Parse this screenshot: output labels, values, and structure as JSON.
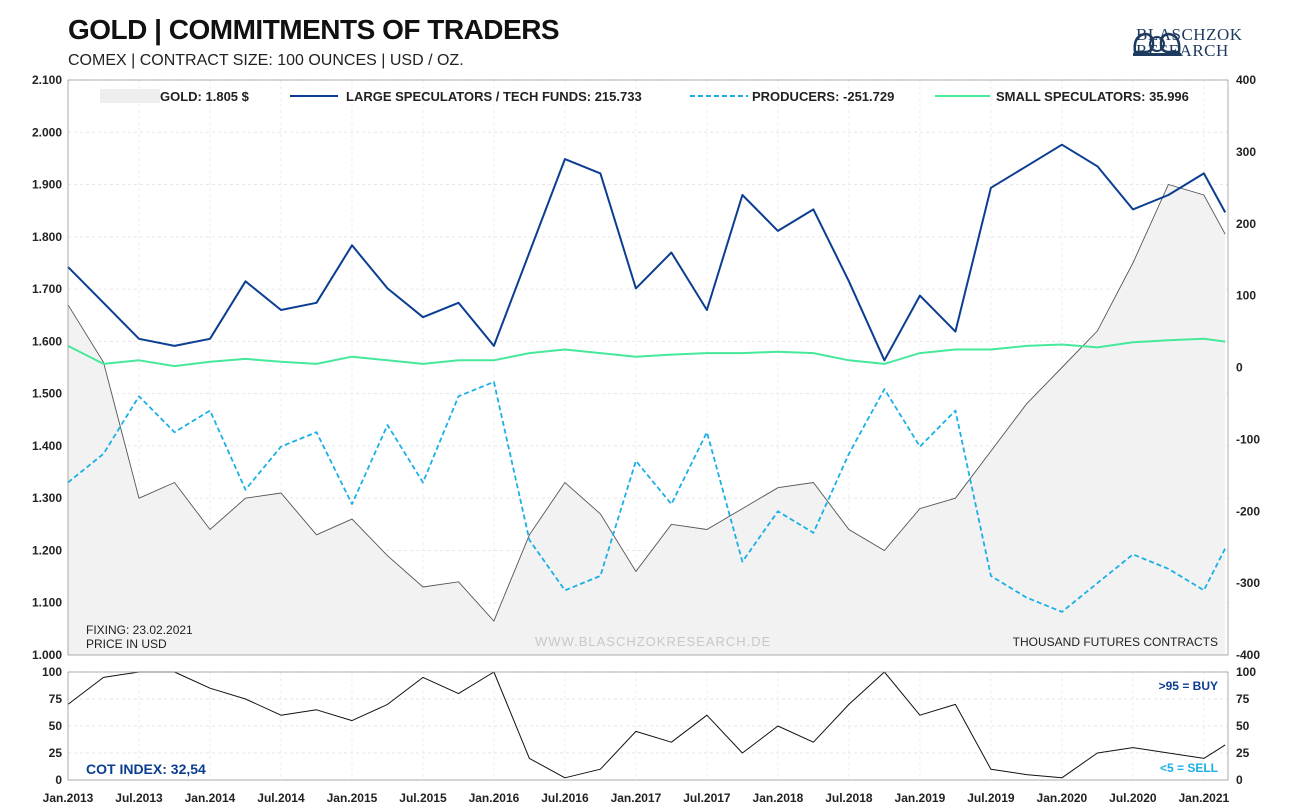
{
  "header": {
    "title": "GOLD | COMMITMENTS OF TRADERS",
    "subtitle": "COMEX | CONTRACT SIZE: 100 OUNCES | USD / OZ.",
    "brand_top": "BLASCHZOK",
    "brand_bottom": "RESEARCH"
  },
  "notes": {
    "fixing": "FIXING: 23.02.2021",
    "price_unit": "PRICE IN USD",
    "watermark": "WWW.BLASCHZOKRESEARCH.DE",
    "right_unit": "THOUSAND FUTURES CONTRACTS",
    "cot_index": "COT INDEX: 32,54",
    "buy_rule": ">95 = BUY",
    "sell_rule": "<5 = SELL"
  },
  "colors": {
    "gold_fill": "#f2f2f2",
    "gold_line": "#555555",
    "large_specs": "#0b3d91",
    "producers": "#1ab0e6",
    "small_specs": "#46e89a",
    "buy_text": "#0b3d91",
    "sell_text": "#1ab0e6"
  },
  "chart_data": [
    {
      "type": "line",
      "x_ticks": [
        "Jan.2013",
        "Jul.2013",
        "Jan.2014",
        "Jul.2014",
        "Jan.2015",
        "Jul.2015",
        "Jan.2016",
        "Jul.2016",
        "Jan.2017",
        "Jul.2017",
        "Jan.2018",
        "Jul.2018",
        "Jan.2019",
        "Jul.2019",
        "Jan.2020",
        "Jul.2020",
        "Jan.2021"
      ],
      "y_left_ticks": [
        "2.100",
        "2.000",
        "1.900",
        "1.800",
        "1.700",
        "1.600",
        "1.500",
        "1.400",
        "1.300",
        "1.200",
        "1.100",
        "1.000"
      ],
      "y_right_ticks": [
        "400",
        "300",
        "200",
        "100",
        "0",
        "-100",
        "-200",
        "-300",
        "-400"
      ],
      "ylim_left": [
        1000,
        2100
      ],
      "ylim_right": [
        -400,
        400
      ],
      "grid": true,
      "legend_position": "top",
      "x": [
        2013.0,
        2013.25,
        2013.5,
        2013.75,
        2014.0,
        2014.25,
        2014.5,
        2014.75,
        2015.0,
        2015.25,
        2015.5,
        2015.75,
        2016.0,
        2016.25,
        2016.5,
        2016.75,
        2017.0,
        2017.25,
        2017.5,
        2017.75,
        2018.0,
        2018.25,
        2018.5,
        2018.75,
        2019.0,
        2019.25,
        2019.5,
        2019.75,
        2020.0,
        2020.25,
        2020.5,
        2020.75,
        2021.0,
        2021.15
      ],
      "series": [
        {
          "name": "GOLD: 1.805 $",
          "axis": "left",
          "style": "area",
          "values": [
            1670,
            1560,
            1300,
            1330,
            1240,
            1300,
            1310,
            1230,
            1260,
            1190,
            1130,
            1140,
            1065,
            1230,
            1330,
            1270,
            1160,
            1250,
            1240,
            1280,
            1320,
            1330,
            1240,
            1200,
            1280,
            1300,
            1390,
            1480,
            1550,
            1620,
            1750,
            1900,
            1880,
            1805
          ]
        },
        {
          "name": "LARGE SPECULATORS / TECH FUNDS: 215.733",
          "axis": "right",
          "style": "solid",
          "values": [
            140,
            90,
            40,
            30,
            40,
            120,
            80,
            90,
            170,
            110,
            70,
            90,
            30,
            160,
            290,
            270,
            110,
            160,
            80,
            240,
            190,
            220,
            120,
            10,
            100,
            50,
            250,
            280,
            310,
            280,
            220,
            240,
            270,
            215.733
          ]
        },
        {
          "name": "PRODUCERS: -251.729",
          "axis": "right",
          "style": "dashed",
          "values": [
            -160,
            -120,
            -40,
            -90,
            -60,
            -170,
            -110,
            -90,
            -190,
            -80,
            -160,
            -40,
            -20,
            -240,
            -310,
            -290,
            -130,
            -190,
            -90,
            -270,
            -200,
            -230,
            -120,
            -30,
            -110,
            -60,
            -290,
            -320,
            -340,
            -300,
            -260,
            -280,
            -310,
            -251.729
          ]
        },
        {
          "name": "SMALL SPECULATORS: 35.996",
          "axis": "right",
          "style": "solid",
          "values": [
            30,
            5,
            10,
            2,
            8,
            12,
            8,
            5,
            15,
            10,
            5,
            10,
            10,
            20,
            25,
            20,
            15,
            18,
            20,
            20,
            22,
            20,
            10,
            5,
            20,
            25,
            25,
            30,
            32,
            28,
            35,
            38,
            40,
            35.996
          ]
        }
      ]
    },
    {
      "type": "line",
      "name": "COT INDEX",
      "y_ticks": [
        "100",
        "75",
        "50",
        "25",
        "0"
      ],
      "ylim": [
        0,
        100
      ],
      "grid": true,
      "x": [
        2013.0,
        2013.25,
        2013.5,
        2013.75,
        2014.0,
        2014.25,
        2014.5,
        2014.75,
        2015.0,
        2015.25,
        2015.5,
        2015.75,
        2016.0,
        2016.25,
        2016.5,
        2016.75,
        2017.0,
        2017.25,
        2017.5,
        2017.75,
        2018.0,
        2018.25,
        2018.5,
        2018.75,
        2019.0,
        2019.25,
        2019.5,
        2019.75,
        2020.0,
        2020.25,
        2020.5,
        2020.75,
        2021.0,
        2021.15
      ],
      "values": [
        70,
        95,
        100,
        100,
        85,
        75,
        60,
        65,
        55,
        70,
        95,
        80,
        100,
        20,
        2,
        10,
        45,
        35,
        60,
        25,
        50,
        35,
        70,
        100,
        60,
        70,
        10,
        5,
        2,
        25,
        30,
        25,
        20,
        32.54
      ]
    }
  ]
}
